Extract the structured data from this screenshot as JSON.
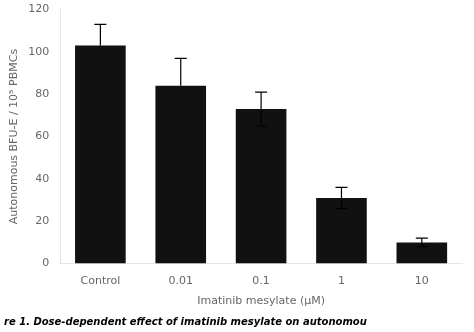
{
  "chart_data": {
    "type": "bar",
    "categories": [
      "Control",
      "0.01",
      "0.1",
      "1",
      "10"
    ],
    "values": [
      103,
      84,
      73,
      31,
      10
    ],
    "errors_upper": [
      10,
      13,
      8,
      5,
      2
    ],
    "errors_lower": [
      0,
      0,
      8,
      5,
      2
    ],
    "color": "#111111",
    "xlabel": "Imatinib mesylate (μM)",
    "ylabel": "Autonomous BFU-E / 10⁵ PBMCs",
    "caption": "re 1. Dose-dependent effect of imatinib mesylate on autonomou",
    "ylim": [
      0,
      120
    ],
    "yticks": [
      0,
      20,
      40,
      60,
      80,
      100,
      120
    ],
    "grid": false
  }
}
